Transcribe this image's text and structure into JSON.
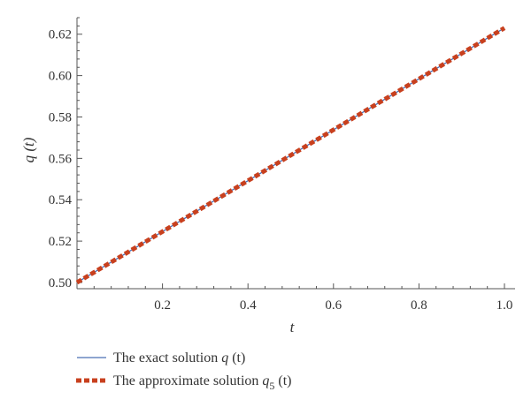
{
  "chart_data": {
    "type": "line",
    "x": [
      0.0,
      0.1,
      0.2,
      0.3,
      0.4,
      0.5,
      0.6,
      0.7,
      0.8,
      0.9,
      1.0
    ],
    "series": [
      {
        "name": "The exact solution q (t)",
        "values": [
          0.5,
          0.5123,
          0.5246,
          0.5369,
          0.5492,
          0.5615,
          0.5738,
          0.5861,
          0.5984,
          0.6107,
          0.623
        ],
        "color": "#4a6fb5",
        "style": "solid"
      },
      {
        "name": "The approximate solution q5 (t)",
        "values": [
          0.5,
          0.5123,
          0.5246,
          0.5369,
          0.5492,
          0.5615,
          0.5738,
          0.5861,
          0.5984,
          0.6107,
          0.623
        ],
        "color": "#c8401e",
        "style": "dashed"
      }
    ],
    "xlabel": "t",
    "ylabel": "q (t)",
    "xlim": [
      0,
      1.0
    ],
    "ylim": [
      0.497,
      0.628
    ],
    "xticks": [
      0.2,
      0.4,
      0.6,
      0.8,
      1.0
    ],
    "xtick_labels": [
      "0.2",
      "0.4",
      "0.6",
      "0.8",
      "1.0"
    ],
    "yticks": [
      0.5,
      0.52,
      0.54,
      0.56,
      0.58,
      0.6,
      0.62
    ],
    "ytick_labels": [
      "0.50",
      "0.52",
      "0.54",
      "0.56",
      "0.58",
      "0.60",
      "0.62"
    ],
    "grid": false,
    "legend_position": "bottom-left",
    "legend": {
      "exact": {
        "prefix": "The exact solution ",
        "var": "q",
        "sub": "",
        "suffix": " (t)"
      },
      "approx": {
        "prefix": "The approximate solution ",
        "var": "q",
        "sub": "5",
        "suffix": " (t)"
      }
    }
  }
}
